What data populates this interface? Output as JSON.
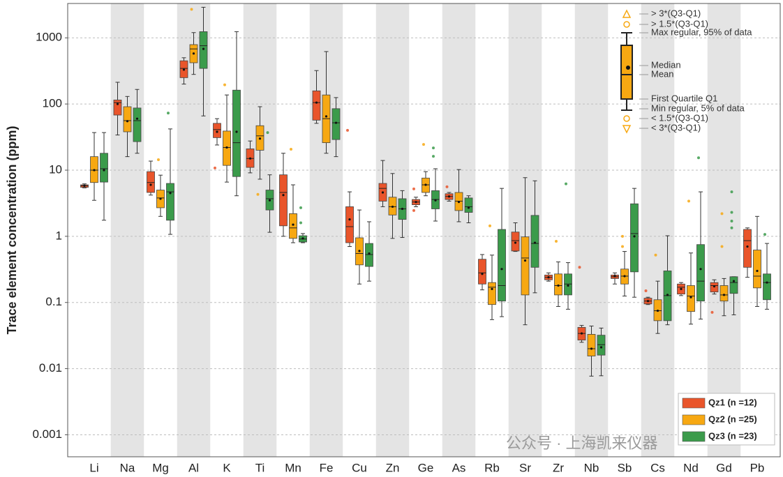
{
  "chart_data": {
    "type": "boxplot",
    "y_label": "Trace element concentration (ppm)",
    "log_scale": true,
    "grid": true,
    "alternate_bands": true,
    "legend": "lower right",
    "ylim": [
      0.0005,
      3000
    ],
    "yticks": [
      0.001,
      0.01,
      0.1,
      1,
      10,
      100,
      1000
    ],
    "categories": [
      "Li",
      "Na",
      "Mg",
      "Al",
      "K",
      "Ti",
      "Mn",
      "Fe",
      "Cu",
      "Zn",
      "Ge",
      "As",
      "Rb",
      "Sr",
      "Zr",
      "Nb",
      "Sb",
      "Cs",
      "Nd",
      "Gd",
      "Pb"
    ],
    "series": [
      {
        "name": "Qz1 (n =12)",
        "color": "#e9552b",
        "boxes": [
          {
            "lo": 5.4,
            "q1": 5.5,
            "med": 5.8,
            "q3": 6,
            "hi": 6.2,
            "mean": 5.8
          },
          {
            "lo": 34,
            "q1": 68,
            "med": 105,
            "q3": 115,
            "hi": 213,
            "mean": 100
          },
          {
            "lo": 4.2,
            "q1": 4.6,
            "med": 6.5,
            "q3": 9.5,
            "hi": 13.7,
            "mean": 6
          },
          {
            "lo": 200,
            "q1": 250,
            "med": 345,
            "q3": 450,
            "hi": 500,
            "mean": 330
          },
          {
            "lo": 24,
            "q1": 31,
            "med": 41,
            "q3": 51,
            "hi": 60,
            "mean": 38,
            "out": [
              10.8
            ]
          },
          {
            "lo": 9.1,
            "q1": 11,
            "med": 15,
            "q3": 21,
            "hi": 27.6,
            "mean": 15
          },
          {
            "lo": 1,
            "q1": 1.44,
            "med": 4.6,
            "q3": 8.5,
            "hi": 18,
            "mean": 4.2
          },
          {
            "lo": 51,
            "q1": 57,
            "med": 105,
            "q3": 158,
            "hi": 320,
            "mean": 105
          },
          {
            "lo": 0.7,
            "q1": 0.8,
            "med": 1.4,
            "q3": 2.8,
            "hi": 4.7,
            "mean": 1.8,
            "out": [
              40
            ]
          },
          {
            "lo": 2.8,
            "q1": 3.4,
            "med": 5.3,
            "q3": 6.3,
            "hi": 14,
            "mean": 4.6
          },
          {
            "lo": 2.8,
            "q1": 3,
            "med": 3.3,
            "q3": 3.6,
            "hi": 3.9,
            "mean": 3.3,
            "out": [
              5.2,
              2.45
            ]
          },
          {
            "lo": 3.4,
            "q1": 3.6,
            "med": 4,
            "q3": 4.4,
            "hi": 4.6,
            "mean": 4,
            "out": [
              5.6
            ]
          },
          {
            "lo": 0.155,
            "q1": 0.19,
            "med": 0.28,
            "q3": 0.45,
            "hi": 0.53,
            "mean": 0.27
          },
          {
            "lo": 0.59,
            "q1": 0.6,
            "med": 0.86,
            "q3": 1.16,
            "hi": 1.6,
            "mean": 0.8
          },
          {
            "lo": 0.21,
            "q1": 0.22,
            "med": 0.24,
            "q3": 0.26,
            "hi": 0.28,
            "mean": 0.24
          },
          {
            "lo": 0.025,
            "q1": 0.027,
            "med": 0.034,
            "q3": 0.042,
            "hi": 0.045,
            "mean": 0.034,
            "out": [
              0.34
            ]
          },
          {
            "lo": 0.19,
            "q1": 0.23,
            "med": 0.245,
            "q3": 0.26,
            "hi": 0.28,
            "mean": 0.25
          },
          {
            "lo": 0.093,
            "q1": 0.095,
            "med": 0.105,
            "q3": 0.116,
            "hi": 0.12,
            "mean": 0.105,
            "out": [
              0.15
            ]
          },
          {
            "lo": 0.127,
            "q1": 0.134,
            "med": 0.17,
            "q3": 0.19,
            "hi": 0.2,
            "mean": 0.16
          },
          {
            "lo": 0.134,
            "q1": 0.144,
            "med": 0.18,
            "q3": 0.2,
            "hi": 0.22,
            "mean": 0.175,
            "out": [
              0.071
            ]
          },
          {
            "lo": 0.24,
            "q1": 0.34,
            "med": 0.86,
            "q3": 1.27,
            "hi": 1.34,
            "mean": 0.7
          }
        ]
      },
      {
        "name": "Qz2 (n =25)",
        "color": "#f7a812",
        "boxes": [
          {
            "lo": 3.5,
            "q1": 6.5,
            "med": 10,
            "q3": 16,
            "hi": 37,
            "mean": 10
          },
          {
            "lo": 16,
            "q1": 38,
            "med": 56,
            "q3": 91,
            "hi": 130,
            "mean": 55
          },
          {
            "lo": 2,
            "q1": 2.7,
            "med": 3.8,
            "q3": 5,
            "hi": 8.4,
            "mean": 3.7,
            "out": [
              14.4
            ]
          },
          {
            "lo": 280,
            "q1": 420,
            "med": 680,
            "q3": 790,
            "hi": 1200,
            "mean": 580,
            "out": [
              2700
            ]
          },
          {
            "lo": 6.6,
            "q1": 11.8,
            "med": 22,
            "q3": 39,
            "hi": 137,
            "mean": 22,
            "out": [
              195
            ]
          },
          {
            "lo": 7.3,
            "q1": 20,
            "med": 33,
            "q3": 47,
            "hi": 91,
            "mean": 30,
            "out": [
              4.3
            ]
          },
          {
            "lo": 0.8,
            "q1": 0.93,
            "med": 1.34,
            "q3": 2.2,
            "hi": 6,
            "mean": 1.5,
            "out": [
              20.7
            ]
          },
          {
            "lo": 18,
            "q1": 26,
            "med": 60,
            "q3": 137,
            "hi": 620,
            "mean": 65
          },
          {
            "lo": 0.19,
            "q1": 0.37,
            "med": 0.55,
            "q3": 0.95,
            "hi": 2.5,
            "mean": 0.6
          },
          {
            "lo": 0.93,
            "q1": 2.1,
            "med": 2.8,
            "q3": 3.9,
            "hi": 8.9,
            "mean": 2.8
          },
          {
            "lo": 4.1,
            "q1": 4.6,
            "med": 6,
            "q3": 7.6,
            "hi": 9.5,
            "mean": 6,
            "out": [
              24.5
            ]
          },
          {
            "lo": 1.66,
            "q1": 2.45,
            "med": 3.4,
            "q3": 4.6,
            "hi": 10.2,
            "mean": 3.3
          },
          {
            "lo": 0.055,
            "q1": 0.093,
            "med": 0.17,
            "q3": 0.2,
            "hi": 0.52,
            "mean": 0.16,
            "out": [
              1.44
            ]
          },
          {
            "lo": 0.046,
            "q1": 0.13,
            "med": 0.47,
            "q3": 0.98,
            "hi": 7.7,
            "mean": 0.43
          },
          {
            "lo": 0.087,
            "q1": 0.13,
            "med": 0.18,
            "q3": 0.27,
            "hi": 0.41,
            "mean": 0.18,
            "out": [
              0.84
            ]
          },
          {
            "lo": 0.0077,
            "q1": 0.0155,
            "med": 0.02,
            "q3": 0.033,
            "hi": 0.044,
            "mean": 0.02
          },
          {
            "lo": 0.125,
            "q1": 0.19,
            "med": 0.25,
            "q3": 0.32,
            "hi": 0.59,
            "mean": 0.25,
            "out": [
              1,
              0.7
            ]
          },
          {
            "lo": 0.034,
            "q1": 0.053,
            "med": 0.075,
            "q3": 0.11,
            "hi": 0.21,
            "mean": 0.075,
            "out": [
              0.52
            ]
          },
          {
            "lo": 0.047,
            "q1": 0.073,
            "med": 0.125,
            "q3": 0.18,
            "hi": 0.56,
            "mean": 0.12,
            "out": [
              3.4
            ]
          },
          {
            "lo": 0.063,
            "q1": 0.105,
            "med": 0.13,
            "q3": 0.18,
            "hi": 0.23,
            "mean": 0.13,
            "out": [
              2.2,
              0.7
            ]
          },
          {
            "lo": 0.087,
            "q1": 0.166,
            "med": 0.25,
            "q3": 0.62,
            "hi": 2,
            "mean": 0.3
          }
        ]
      },
      {
        "name": "Qz3 (n =23)",
        "color": "#3b9b4b",
        "boxes": [
          {
            "lo": 1.75,
            "q1": 6.6,
            "med": 10.5,
            "q3": 18,
            "hi": 37,
            "mean": 10
          },
          {
            "lo": 18,
            "q1": 27,
            "med": 56,
            "q3": 87,
            "hi": 166,
            "mean": 60
          },
          {
            "lo": 1.07,
            "q1": 1.75,
            "med": 4.7,
            "q3": 6.3,
            "hi": 42,
            "mean": 4.5,
            "out": [
              73
            ]
          },
          {
            "lo": 66,
            "q1": 345,
            "med": 760,
            "q3": 1240,
            "hi": 2900,
            "mean": 680
          },
          {
            "lo": 4.1,
            "q1": 8,
            "med": 26,
            "q3": 162,
            "hi": 1240,
            "mean": 38
          },
          {
            "lo": 1.15,
            "q1": 2.5,
            "med": 3.7,
            "q3": 5,
            "hi": 8.5,
            "mean": 3.5,
            "out": [
              37
            ]
          },
          {
            "lo": 0.8,
            "q1": 0.82,
            "med": 0.91,
            "q3": 1.02,
            "hi": 1.1,
            "mean": 0.93,
            "out": [
              2.7,
              1.6
            ]
          },
          {
            "lo": 16,
            "q1": 29,
            "med": 52,
            "q3": 85,
            "hi": 125,
            "mean": 52
          },
          {
            "lo": 0.21,
            "q1": 0.35,
            "med": 0.53,
            "q3": 0.78,
            "hi": 1.66,
            "mean": 0.55
          },
          {
            "lo": 0.96,
            "q1": 1.8,
            "med": 2.6,
            "q3": 3.7,
            "hi": 4.9,
            "mean": 2.6
          },
          {
            "lo": 1.7,
            "q1": 2.6,
            "med": 3.6,
            "q3": 4.9,
            "hi": 10.5,
            "mean": 3.5,
            "out": [
              21.7,
              16.2
            ]
          },
          {
            "lo": 1.6,
            "q1": 2.3,
            "med": 2.8,
            "q3": 3.8,
            "hi": 4.1,
            "mean": 2.7
          },
          {
            "lo": 0.061,
            "q1": 0.105,
            "med": 0.18,
            "q3": 1.27,
            "hi": 5.3,
            "mean": 0.32
          },
          {
            "lo": 0.14,
            "q1": 0.34,
            "med": 0.78,
            "q3": 2.07,
            "hi": 6.9,
            "mean": 0.8
          },
          {
            "lo": 0.079,
            "q1": 0.13,
            "med": 0.19,
            "q3": 0.27,
            "hi": 0.4,
            "mean": 0.18,
            "out": [
              6.2
            ]
          },
          {
            "lo": 0.0078,
            "q1": 0.016,
            "med": 0.023,
            "q3": 0.032,
            "hi": 0.041,
            "mean": 0.021
          },
          {
            "lo": 0.12,
            "q1": 0.29,
            "med": 1.1,
            "q3": 3.1,
            "hi": 5.3,
            "mean": 1
          },
          {
            "lo": 0.046,
            "q1": 0.053,
            "med": 0.127,
            "q3": 0.3,
            "hi": 1.02,
            "mean": 0.13
          },
          {
            "lo": 0.056,
            "q1": 0.105,
            "med": 0.21,
            "q3": 0.75,
            "hi": 4.7,
            "mean": 0.32,
            "out": [
              15.4
            ]
          },
          {
            "lo": 0.065,
            "q1": 0.137,
            "med": 0.2,
            "q3": 0.245,
            "hi": 0.245,
            "mean": 0.21,
            "out": [
              4.7,
              2.3,
              1.7,
              1.34
            ]
          },
          {
            "lo": 0.079,
            "q1": 0.11,
            "med": 0.2,
            "q3": 0.27,
            "hi": 0.78,
            "mean": 0.2,
            "out": [
              1.07
            ]
          }
        ]
      }
    ],
    "key": [
      "> 3*(Q3-Q1)",
      "> 1.5*(Q3-Q1)",
      "Max regular, 95% of data",
      "Median",
      "Mean",
      "First Quartile Q1",
      "Min regular, 5% of data",
      "< 1.5*(Q3-Q1)",
      "< 3*(Q3-Q1)"
    ],
    "watermark": "公众号 · 上海凯来仪器"
  }
}
